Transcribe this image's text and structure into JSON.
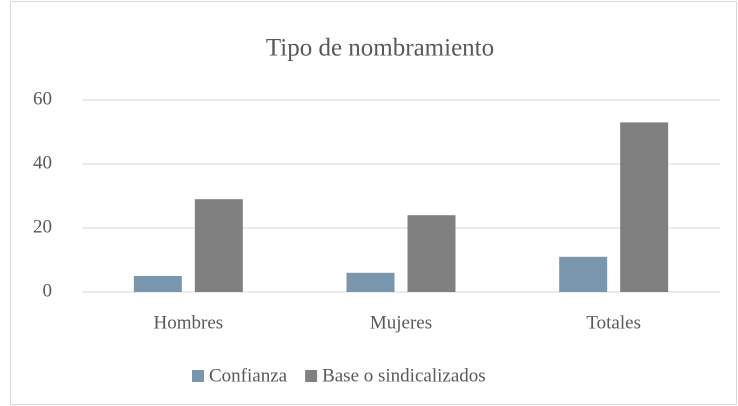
{
  "chart_data": {
    "type": "bar",
    "title": "Tipo de nombramiento",
    "categories": [
      "Hombres",
      "Mujeres",
      "Totales"
    ],
    "series": [
      {
        "name": "Confianza",
        "color": "#7896ad",
        "values": [
          5,
          6,
          11
        ]
      },
      {
        "name": "Base o sindicalizados",
        "color": "#808080",
        "values": [
          29,
          24,
          53
        ]
      }
    ],
    "ylim": [
      0,
      60
    ],
    "yticks": [
      0,
      20,
      40,
      60
    ],
    "grid": true,
    "legend": "bottom"
  }
}
